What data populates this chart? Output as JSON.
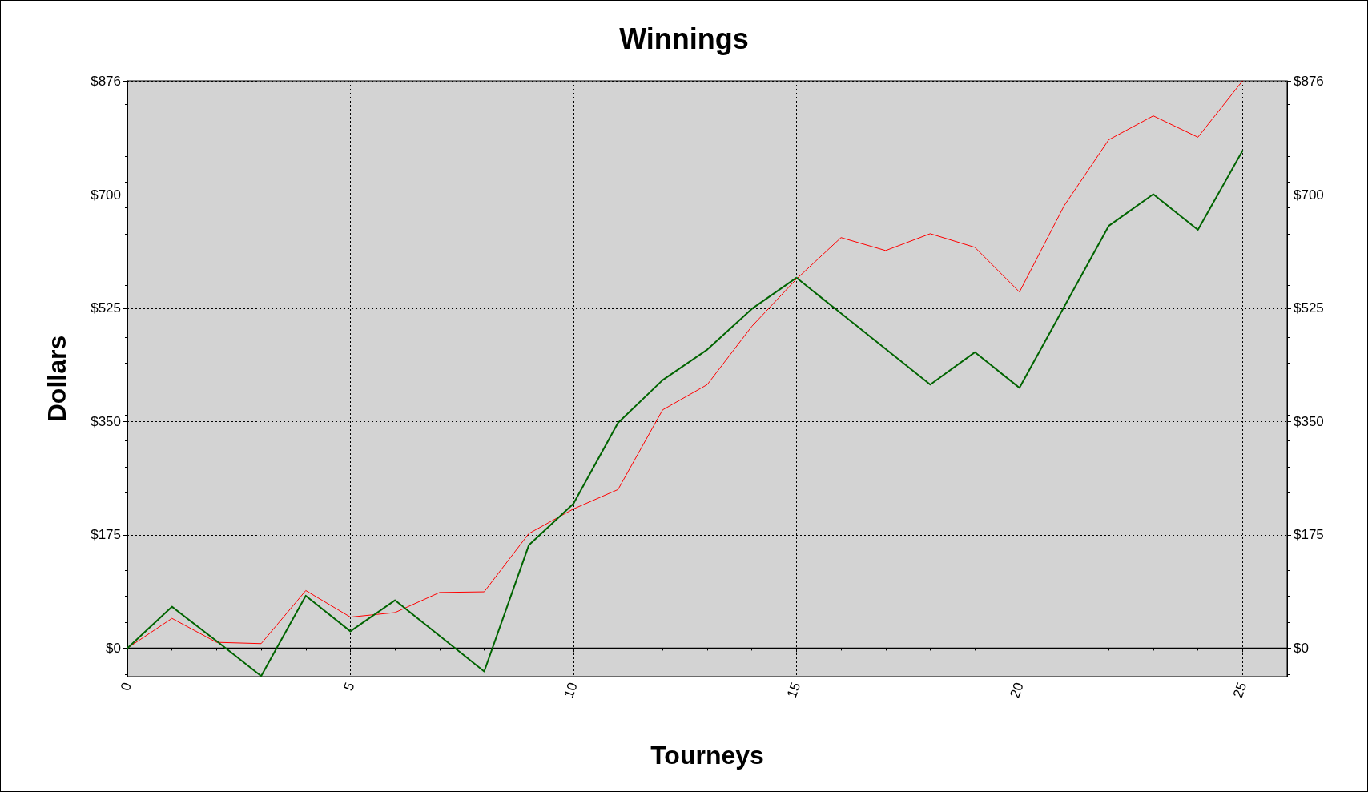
{
  "chart_data": {
    "type": "line",
    "title": "Winnings",
    "xlabel": "Tourneys",
    "ylabel": "Dollars",
    "x": [
      0,
      1,
      2,
      3,
      4,
      5,
      6,
      7,
      8,
      9,
      10,
      11,
      12,
      13,
      14,
      15,
      16,
      17,
      18,
      19,
      20,
      21,
      22,
      23,
      24,
      25
    ],
    "series": [
      {
        "color": "#ff0000",
        "values": [
          0,
          46,
          9,
          7,
          89,
          48,
          55,
          86,
          87,
          177,
          215,
          245,
          368,
          407,
          497,
          570,
          634,
          614,
          640,
          619,
          550,
          683,
          785,
          822,
          789,
          876
        ]
      },
      {
        "color": "#006400",
        "values": [
          0,
          64,
          11,
          -43,
          81,
          26,
          74,
          19,
          -36,
          159,
          223,
          348,
          414,
          461,
          524,
          572,
          517,
          462,
          407,
          457,
          402,
          527,
          652,
          701,
          646,
          768
        ]
      }
    ],
    "xlim": [
      0,
      26
    ],
    "xticks": [
      0,
      5,
      10,
      15,
      20,
      25
    ],
    "ylim": [
      -44,
      876
    ],
    "yticks": [
      {
        "value": 0,
        "label": "$0"
      },
      {
        "value": 175,
        "label": "$175"
      },
      {
        "value": 350,
        "label": "$350"
      },
      {
        "value": 525,
        "label": "$525"
      },
      {
        "value": 700,
        "label": "$700"
      },
      {
        "value": 876,
        "label": "$876"
      }
    ],
    "y2lim": [
      -44,
      876
    ],
    "y2ticks": [
      {
        "value": 0,
        "label": "$0"
      },
      {
        "value": 175,
        "label": "$175"
      },
      {
        "value": 350,
        "label": "$350"
      },
      {
        "value": 525,
        "label": "$525"
      },
      {
        "value": 700,
        "label": "$700"
      },
      {
        "value": 876,
        "label": "$876"
      }
    ],
    "ref_lines": [
      {
        "axis": "y",
        "value": 0,
        "color": "#000000"
      }
    ],
    "grid": true,
    "marker": "none",
    "line_style": "solid"
  }
}
